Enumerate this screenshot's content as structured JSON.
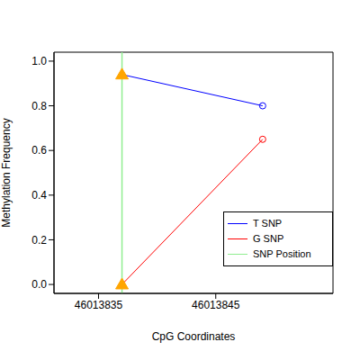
{
  "chart_data": {
    "type": "line",
    "x_label": "CpG Coordinates",
    "y_label": "Methylation Frequency",
    "xlim": [
      46013831.2,
      46013855
    ],
    "xticks": [
      46013835,
      46013845
    ],
    "ylim": [
      -0.04,
      1.04
    ],
    "yticks": [
      {
        "value": 0,
        "label": "0.0"
      },
      {
        "value": 0.2,
        "label": "0.2"
      },
      {
        "value": 0.4,
        "label": "0.4"
      },
      {
        "value": 0.6,
        "label": "0.6"
      },
      {
        "value": 0.8,
        "label": "0.8"
      },
      {
        "value": 1,
        "label": "1.0"
      }
    ],
    "legend": "right",
    "series": [
      {
        "name": "T SNP",
        "color": "#0000ff",
        "marker": "circle",
        "x": [
          46013837,
          46013849
        ],
        "values": [
          0.94,
          0.8
        ]
      },
      {
        "name": "G SNP",
        "color": "#ff0000",
        "marker": "circle",
        "x": [
          46013837,
          46013849
        ],
        "values": [
          0.0,
          0.65
        ]
      }
    ],
    "snp_position": {
      "name": "SNP Position",
      "x": 46013837,
      "color": "#90ee90",
      "marker": "triangle"
    }
  }
}
